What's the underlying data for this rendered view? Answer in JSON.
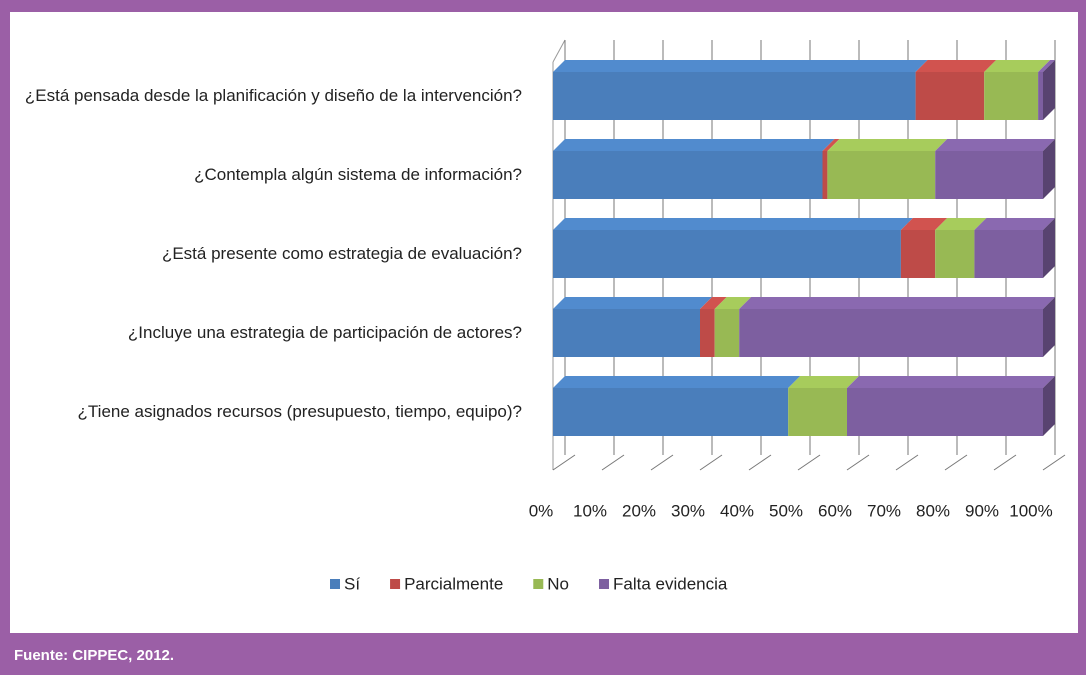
{
  "chart_data": {
    "type": "stacked-bar-3d",
    "categories": [
      "¿Está pensada desde la planificación y diseño de la intervención?",
      "¿Contempla algún sistema de información?",
      "¿Está presente como estrategia de evaluación?",
      "¿Incluye una estrategia de participación de actores?",
      "¿Tiene asignados recursos (presupuesto, tiempo, equipo)?"
    ],
    "series": [
      {
        "name": "Sí",
        "color": "#4a7ebb",
        "values": [
          74,
          55,
          71,
          30,
          48
        ]
      },
      {
        "name": "Parcialmente",
        "color": "#be4b48",
        "values": [
          14,
          1,
          7,
          3,
          0
        ]
      },
      {
        "name": "No",
        "color": "#98b954",
        "values": [
          11,
          22,
          8,
          5,
          12
        ]
      },
      {
        "name": "Falta evidencia",
        "color": "#7d5fa0",
        "values": [
          1,
          22,
          14,
          62,
          40
        ]
      }
    ],
    "xlim": [
      0,
      100
    ],
    "xticks": [
      {
        "value": 0,
        "label": "0%"
      },
      {
        "value": 10,
        "label": "10%"
      },
      {
        "value": 20,
        "label": "20%"
      },
      {
        "value": 30,
        "label": "30%"
      },
      {
        "value": 40,
        "label": "40%"
      },
      {
        "value": 50,
        "label": "50%"
      },
      {
        "value": 60,
        "label": "60%"
      },
      {
        "value": 70,
        "label": "70%"
      },
      {
        "value": 80,
        "label": "80%"
      },
      {
        "value": 90,
        "label": "90%"
      },
      {
        "value": 100,
        "label": "100%"
      }
    ],
    "grid": true,
    "legend": "bottom"
  },
  "source": "Fuente: CIPPEC, 2012."
}
